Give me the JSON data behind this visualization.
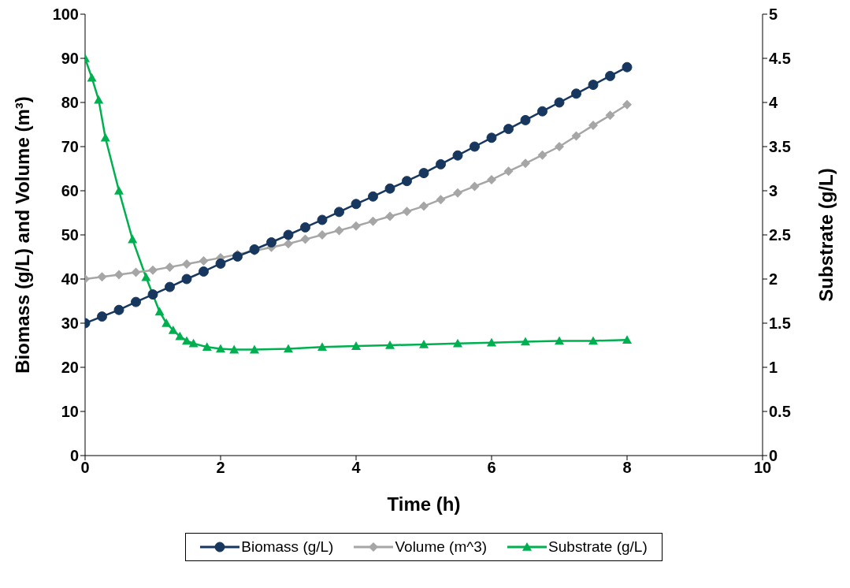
{
  "chart_data": {
    "type": "line",
    "xlabel": "Time (h)",
    "ylabel": "Biomass (g/L) and Volume (m³)",
    "y2label": "Substrate (g/L)",
    "xlim": [
      0,
      10
    ],
    "xticks": [
      0,
      2,
      4,
      6,
      8,
      10
    ],
    "ylim": [
      0,
      100
    ],
    "yticks": [
      0,
      10,
      20,
      30,
      40,
      50,
      60,
      70,
      80,
      90,
      100
    ],
    "y2lim": [
      0,
      5
    ],
    "y2ticks": [
      0,
      0.5,
      1,
      1.5,
      2,
      2.5,
      3,
      3.5,
      4,
      4.5,
      5
    ],
    "legend": "bottom",
    "series": [
      {
        "name": "Biomass (g/L)",
        "color": "#17375e",
        "marker": "circle",
        "x": [
          0,
          0.25,
          0.5,
          0.75,
          1,
          1.25,
          1.5,
          1.75,
          2,
          2.25,
          2.5,
          2.75,
          3,
          3.25,
          3.5,
          3.75,
          4,
          4.25,
          4.5,
          4.75,
          5,
          5.25,
          5.5,
          5.75,
          6,
          6.25,
          6.5,
          6.75,
          7,
          7.25,
          7.5,
          7.75,
          8
        ],
        "values": [
          30,
          31.5,
          33,
          34.8,
          36.5,
          38.2,
          40,
          41.7,
          43.5,
          45.1,
          46.7,
          48.3,
          50,
          51.7,
          53.4,
          55.2,
          57,
          58.7,
          60.5,
          62.2,
          64,
          66,
          68,
          70,
          72,
          74,
          76,
          78,
          80,
          82,
          84,
          86,
          88
        ]
      },
      {
        "name": "Volume (m^3)",
        "color": "#a6a6a6",
        "marker": "diamond",
        "x": [
          0,
          0.25,
          0.5,
          0.75,
          1,
          1.25,
          1.5,
          1.75,
          2,
          2.25,
          2.5,
          2.75,
          3,
          3.25,
          3.5,
          3.75,
          4,
          4.25,
          4.5,
          4.75,
          5,
          5.25,
          5.5,
          5.75,
          6,
          6.25,
          6.5,
          6.75,
          7,
          7.25,
          7.5,
          7.75,
          8
        ],
        "values": [
          40,
          40.5,
          41,
          41.5,
          42,
          42.7,
          43.4,
          44.1,
          44.8,
          45.6,
          46.4,
          47.2,
          48,
          49,
          50,
          51,
          52,
          53.1,
          54.2,
          55.3,
          56.5,
          58,
          59.5,
          61,
          62.5,
          64.4,
          66.2,
          68.1,
          70,
          72.4,
          74.8,
          77.1,
          79.5
        ]
      },
      {
        "name": "Substrate (g/L)",
        "color": "#00b050",
        "marker": "triangle",
        "axis": "y2",
        "x": [
          0,
          0.1,
          0.2,
          0.3,
          0.5,
          0.7,
          0.9,
          1.1,
          1.2,
          1.3,
          1.4,
          1.5,
          1.6,
          1.8,
          2,
          2.2,
          2.5,
          3,
          3.5,
          4,
          4.5,
          5,
          5.5,
          6,
          6.5,
          7,
          7.5,
          8
        ],
        "values": [
          4.5,
          4.28,
          4.03,
          3.6,
          3,
          2.45,
          2.02,
          1.63,
          1.5,
          1.42,
          1.35,
          1.3,
          1.27,
          1.23,
          1.21,
          1.2,
          1.2,
          1.21,
          1.23,
          1.24,
          1.25,
          1.26,
          1.27,
          1.28,
          1.29,
          1.3,
          1.3,
          1.31
        ]
      }
    ]
  }
}
